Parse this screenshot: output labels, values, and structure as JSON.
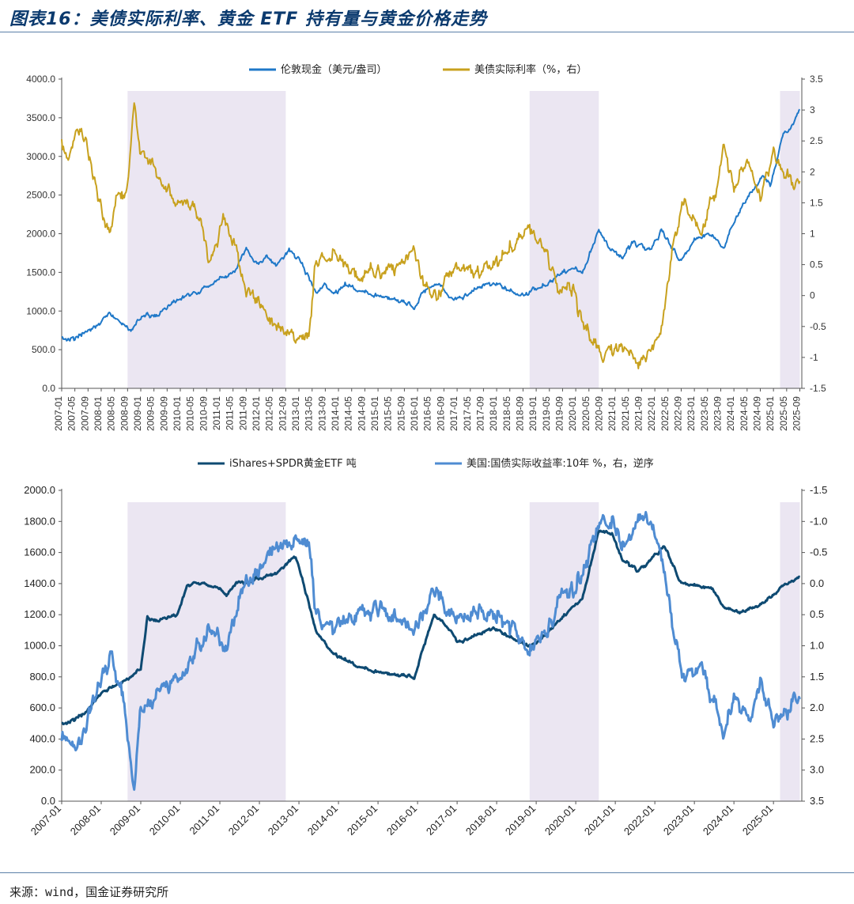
{
  "title": "图表16：美债实际利率、黄金 ETF 持有量与黄金价格走势",
  "source": "来源：wind，国金证券研究所",
  "chart_data": [
    {
      "type": "line",
      "name": "top",
      "legend": [
        "伦敦现金（美元/盎司）",
        "美债实际利率（%，右）"
      ],
      "x_range": [
        "2007-01",
        "2025-09"
      ],
      "x_ticks": [
        "2007-01",
        "2007-05",
        "2007-09",
        "2008-01",
        "2008-05",
        "2008-09",
        "2009-01",
        "2009-05",
        "2009-09",
        "2010-01",
        "2010-05",
        "2010-09",
        "2011-01",
        "2011-05",
        "2011-09",
        "2012-01",
        "2012-05",
        "2012-09",
        "2013-01",
        "2013-05",
        "2013-09",
        "2014-01",
        "2014-05",
        "2014-09",
        "2015-01",
        "2015-05",
        "2015-09",
        "2016-01",
        "2016-05",
        "2016-09",
        "2017-01",
        "2017-05",
        "2017-09",
        "2018-01",
        "2018-05",
        "2018-09",
        "2019-01",
        "2019-05",
        "2019-09",
        "2020-01",
        "2020-05",
        "2020-09",
        "2021-01",
        "2021-05",
        "2021-09",
        "2022-01",
        "2022-05",
        "2022-09",
        "2023-01",
        "2023-05",
        "2023-09",
        "2024-01",
        "2024-05",
        "2024-09",
        "2025-01",
        "2025-05",
        "2025-09"
      ],
      "y_left_ticks": [
        "0.0",
        "500.0",
        "1000.0",
        "1500.0",
        "2000.0",
        "2500.0",
        "3000.0",
        "3500.0",
        "4000.0"
      ],
      "y_left_range": [
        0,
        4000
      ],
      "y_right_ticks": [
        "-1.5",
        "-1",
        "-0.5",
        "0",
        "0.5",
        "1",
        "1.5",
        "2",
        "2.5",
        "3",
        "3.5"
      ],
      "y_right_range": [
        -1.5,
        3.5
      ],
      "shaded_periods": [
        [
          "2008-09",
          "2012-09"
        ],
        [
          "2018-11",
          "2020-08"
        ],
        [
          "2025-03",
          "2025-09"
        ]
      ],
      "series": [
        {
          "name": "伦敦现金（美元/盎司）",
          "color": "#1f78c8",
          "axis": "left",
          "points": [
            [
              "2007-01",
              630
            ],
            [
              "2007-06",
              660
            ],
            [
              "2007-12",
              820
            ],
            [
              "2008-03",
              980
            ],
            [
              "2008-06",
              900
            ],
            [
              "2008-10",
              760
            ],
            [
              "2009-02",
              950
            ],
            [
              "2009-06",
              940
            ],
            [
              "2009-12",
              1150
            ],
            [
              "2010-06",
              1240
            ],
            [
              "2010-12",
              1400
            ],
            [
              "2011-06",
              1520
            ],
            [
              "2011-09",
              1850
            ],
            [
              "2011-12",
              1600
            ],
            [
              "2012-03",
              1700
            ],
            [
              "2012-06",
              1580
            ],
            [
              "2012-10",
              1780
            ],
            [
              "2013-01",
              1680
            ],
            [
              "2013-04",
              1420
            ],
            [
              "2013-06",
              1230
            ],
            [
              "2013-09",
              1360
            ],
            [
              "2013-12",
              1220
            ],
            [
              "2014-03",
              1340
            ],
            [
              "2014-06",
              1300
            ],
            [
              "2014-12",
              1190
            ],
            [
              "2015-06",
              1170
            ],
            [
              "2015-12",
              1060
            ],
            [
              "2016-03",
              1250
            ],
            [
              "2016-07",
              1360
            ],
            [
              "2016-12",
              1130
            ],
            [
              "2017-06",
              1260
            ],
            [
              "2017-09",
              1330
            ],
            [
              "2018-01",
              1340
            ],
            [
              "2018-08",
              1190
            ],
            [
              "2019-01",
              1290
            ],
            [
              "2019-06",
              1400
            ],
            [
              "2019-09",
              1510
            ],
            [
              "2020-01",
              1560
            ],
            [
              "2020-03",
              1480
            ],
            [
              "2020-08",
              2050
            ],
            [
              "2020-11",
              1820
            ],
            [
              "2021-03",
              1690
            ],
            [
              "2021-06",
              1880
            ],
            [
              "2021-12",
              1800
            ],
            [
              "2022-03",
              2040
            ],
            [
              "2022-09",
              1640
            ],
            [
              "2023-01",
              1920
            ],
            [
              "2023-05",
              2000
            ],
            [
              "2023-10",
              1820
            ],
            [
              "2023-12",
              2060
            ],
            [
              "2024-04",
              2380
            ],
            [
              "2024-10",
              2750
            ],
            [
              "2024-12",
              2620
            ],
            [
              "2025-04",
              3300
            ],
            [
              "2025-06",
              3350
            ],
            [
              "2025-09",
              3600
            ]
          ]
        },
        {
          "name": "美债实际利率（%，右）",
          "color": "#c8a11e",
          "axis": "right",
          "points": [
            [
              "2007-01",
              2.5
            ],
            [
              "2007-03",
              2.2
            ],
            [
              "2007-06",
              2.7
            ],
            [
              "2007-09",
              2.4
            ],
            [
              "2007-12",
              1.6
            ],
            [
              "2008-03",
              1.0
            ],
            [
              "2008-06",
              1.6
            ],
            [
              "2008-09",
              1.8
            ],
            [
              "2008-11",
              3.1
            ],
            [
              "2009-01",
              2.3
            ],
            [
              "2009-06",
              2.0
            ],
            [
              "2009-12",
              1.5
            ],
            [
              "2010-06",
              1.4
            ],
            [
              "2010-10",
              0.5
            ],
            [
              "2011-02",
              1.2
            ],
            [
              "2011-06",
              0.8
            ],
            [
              "2011-09",
              0.1
            ],
            [
              "2012-01",
              -0.1
            ],
            [
              "2012-06",
              -0.5
            ],
            [
              "2012-12",
              -0.7
            ],
            [
              "2013-04",
              -0.6
            ],
            [
              "2013-06",
              0.5
            ],
            [
              "2013-09",
              0.7
            ],
            [
              "2014-01",
              0.6
            ],
            [
              "2014-06",
              0.3
            ],
            [
              "2014-12",
              0.4
            ],
            [
              "2015-06",
              0.4
            ],
            [
              "2015-12",
              0.7
            ],
            [
              "2016-03",
              0.1
            ],
            [
              "2016-07",
              0.0
            ],
            [
              "2016-12",
              0.5
            ],
            [
              "2017-06",
              0.4
            ],
            [
              "2017-12",
              0.5
            ],
            [
              "2018-06",
              0.8
            ],
            [
              "2018-11",
              1.1
            ],
            [
              "2019-03",
              0.8
            ],
            [
              "2019-08",
              0.1
            ],
            [
              "2019-12",
              0.1
            ],
            [
              "2020-03",
              -0.4
            ],
            [
              "2020-06",
              -0.7
            ],
            [
              "2020-09",
              -1.0
            ],
            [
              "2021-02",
              -0.8
            ],
            [
              "2021-08",
              -1.1
            ],
            [
              "2021-12",
              -0.9
            ],
            [
              "2022-03",
              -0.6
            ],
            [
              "2022-06",
              0.6
            ],
            [
              "2022-10",
              1.6
            ],
            [
              "2023-01",
              1.2
            ],
            [
              "2023-03",
              1.0
            ],
            [
              "2023-08",
              1.8
            ],
            [
              "2023-10",
              2.4
            ],
            [
              "2024-01",
              1.7
            ],
            [
              "2024-05",
              2.2
            ],
            [
              "2024-09",
              1.6
            ],
            [
              "2025-01",
              2.3
            ],
            [
              "2025-04",
              2.0
            ],
            [
              "2025-09",
              1.8
            ]
          ]
        }
      ]
    },
    {
      "type": "line",
      "name": "bottom",
      "legend": [
        "iShares+SPDR黄金ETF 吨",
        "美国:国债实际收益率:10年 %，右，逆序"
      ],
      "x_ticks": [
        "2007-01",
        "2008-01",
        "2009-01",
        "2010-01",
        "2011-01",
        "2012-01",
        "2013-01",
        "2014-01",
        "2015-01",
        "2016-01",
        "2017-01",
        "2018-01",
        "2019-01",
        "2020-01",
        "2021-01",
        "2022-01",
        "2023-01",
        "2024-01",
        "2025-01"
      ],
      "y_left_ticks": [
        "0.0",
        "200.0",
        "400.0",
        "600.0",
        "800.0",
        "1000.0",
        "1200.0",
        "1400.0",
        "1600.0",
        "1800.0",
        "2000.0"
      ],
      "y_left_range": [
        0,
        2000
      ],
      "y_right_ticks": [
        "-1.5",
        "-1.0",
        "-0.5",
        "0.0",
        "0.5",
        "1.0",
        "1.5",
        "2.0",
        "2.5",
        "3.0",
        "3.5"
      ],
      "y_right_range": [
        -1.5,
        3.5
      ],
      "y_right_inverted": true,
      "shaded_periods": [
        [
          "2008-09",
          "2012-09"
        ],
        [
          "2018-11",
          "2020-08"
        ],
        [
          "2025-03",
          "2025-09"
        ]
      ],
      "series": [
        {
          "name": "iShares+SPDR黄金ETF 吨",
          "color": "#0e4a72",
          "axis": "left",
          "points": [
            [
              "2007-01",
              490
            ],
            [
              "2007-08",
              560
            ],
            [
              "2008-01",
              700
            ],
            [
              "2008-09",
              790
            ],
            [
              "2009-01",
              850
            ],
            [
              "2009-03",
              1180
            ],
            [
              "2009-06",
              1160
            ],
            [
              "2009-12",
              1200
            ],
            [
              "2010-03",
              1380
            ],
            [
              "2010-06",
              1410
            ],
            [
              "2010-12",
              1380
            ],
            [
              "2011-03",
              1330
            ],
            [
              "2011-06",
              1400
            ],
            [
              "2011-12",
              1430
            ],
            [
              "2012-06",
              1460
            ],
            [
              "2012-12",
              1580
            ],
            [
              "2013-03",
              1350
            ],
            [
              "2013-06",
              1100
            ],
            [
              "2013-12",
              940
            ],
            [
              "2014-06",
              880
            ],
            [
              "2014-12",
              830
            ],
            [
              "2015-06",
              820
            ],
            [
              "2015-12",
              800
            ],
            [
              "2016-03",
              1000
            ],
            [
              "2016-06",
              1200
            ],
            [
              "2016-11",
              1100
            ],
            [
              "2017-01",
              1020
            ],
            [
              "2017-06",
              1060
            ],
            [
              "2017-12",
              1110
            ],
            [
              "2018-08",
              1020
            ],
            [
              "2018-12",
              1000
            ],
            [
              "2019-06",
              1120
            ],
            [
              "2019-12",
              1250
            ],
            [
              "2020-03",
              1300
            ],
            [
              "2020-08",
              1740
            ],
            [
              "2020-12",
              1720
            ],
            [
              "2021-03",
              1560
            ],
            [
              "2021-08",
              1480
            ],
            [
              "2021-12",
              1560
            ],
            [
              "2022-04",
              1640
            ],
            [
              "2022-09",
              1400
            ],
            [
              "2023-01",
              1390
            ],
            [
              "2023-06",
              1370
            ],
            [
              "2023-10",
              1250
            ],
            [
              "2024-03",
              1210
            ],
            [
              "2024-09",
              1260
            ],
            [
              "2025-01",
              1330
            ],
            [
              "2025-04",
              1390
            ],
            [
              "2025-09",
              1440
            ]
          ]
        },
        {
          "name": "美国:国债实际收益率:10年 %，右，逆序",
          "color": "#4f8cd2",
          "axis": "right",
          "points": [
            [
              "2007-01",
              2.5
            ],
            [
              "2007-06",
              2.6
            ],
            [
              "2007-09",
              2.2
            ],
            [
              "2008-01",
              1.5
            ],
            [
              "2008-04",
              1.2
            ],
            [
              "2008-07",
              1.7
            ],
            [
              "2008-10",
              2.9
            ],
            [
              "2008-11",
              3.3
            ],
            [
              "2009-01",
              2.0
            ],
            [
              "2009-06",
              1.8
            ],
            [
              "2010-01",
              1.5
            ],
            [
              "2010-10",
              0.7
            ],
            [
              "2011-03",
              1.0
            ],
            [
              "2011-09",
              0.0
            ],
            [
              "2012-01",
              -0.2
            ],
            [
              "2012-06",
              -0.6
            ],
            [
              "2012-12",
              -0.7
            ],
            [
              "2013-04",
              -0.6
            ],
            [
              "2013-06",
              0.4
            ],
            [
              "2013-09",
              0.8
            ],
            [
              "2014-01",
              0.6
            ],
            [
              "2014-12",
              0.4
            ],
            [
              "2015-06",
              0.5
            ],
            [
              "2015-12",
              0.7
            ],
            [
              "2016-06",
              0.1
            ],
            [
              "2016-12",
              0.6
            ],
            [
              "2017-06",
              0.5
            ],
            [
              "2017-12",
              0.5
            ],
            [
              "2018-06",
              0.7
            ],
            [
              "2018-11",
              1.1
            ],
            [
              "2019-06",
              0.6
            ],
            [
              "2019-09",
              0.1
            ],
            [
              "2019-12",
              0.1
            ],
            [
              "2020-03",
              -0.1
            ],
            [
              "2020-08",
              -1.0
            ],
            [
              "2020-12",
              -1.0
            ],
            [
              "2021-03",
              -0.6
            ],
            [
              "2021-09",
              -1.1
            ],
            [
              "2021-12",
              -1.0
            ],
            [
              "2022-03",
              -0.5
            ],
            [
              "2022-06",
              0.5
            ],
            [
              "2022-10",
              1.6
            ],
            [
              "2023-03",
              1.3
            ],
            [
              "2023-10",
              2.4
            ],
            [
              "2024-01",
              1.8
            ],
            [
              "2024-06",
              2.2
            ],
            [
              "2024-09",
              1.6
            ],
            [
              "2025-01",
              2.2
            ],
            [
              "2025-05",
              2.1
            ],
            [
              "2025-09",
              1.8
            ]
          ]
        }
      ]
    }
  ]
}
